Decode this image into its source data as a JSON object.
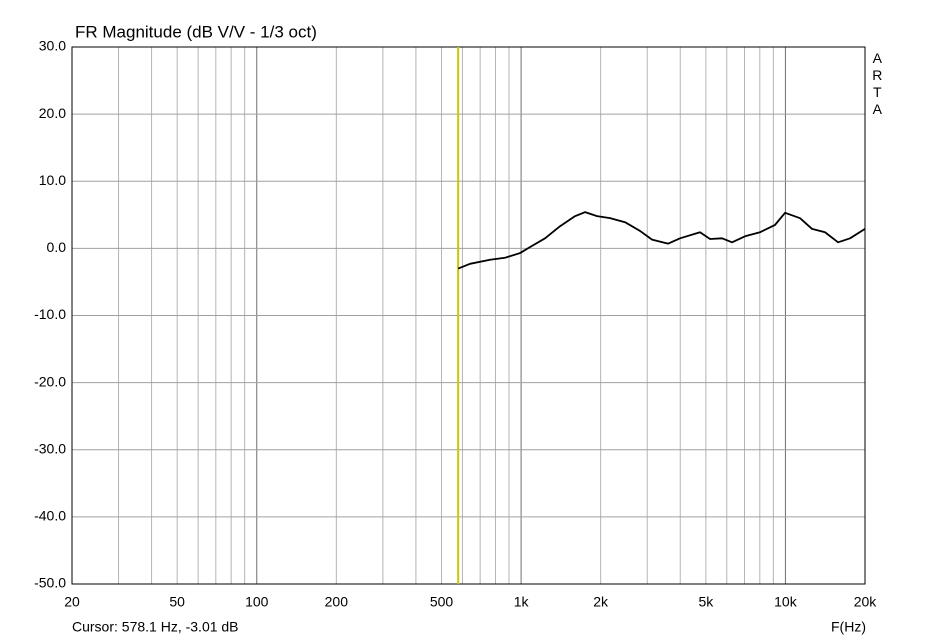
{
  "chart_data": {
    "type": "line",
    "title": "FR Magnitude (dB V/V - 1/3 oct)",
    "x_label": "F(Hz)",
    "watermark": "ARTA",
    "xscale": "log",
    "grid": true,
    "xlim": [
      20,
      20000
    ],
    "ylim": [
      -50,
      30
    ],
    "xticks": [
      20,
      50,
      100,
      200,
      500,
      {
        "value": 1000,
        "label": "1k"
      },
      {
        "value": 2000,
        "label": "2k"
      },
      {
        "value": 5000,
        "label": "5k"
      },
      {
        "value": 10000,
        "label": "10k"
      },
      {
        "value": 20000,
        "label": "20k"
      }
    ],
    "yticks": [
      {
        "value": 30,
        "label": "30.0"
      },
      {
        "value": 20,
        "label": "20.0"
      },
      {
        "value": 10,
        "label": "10.0"
      },
      {
        "value": 0,
        "label": "0.0"
      },
      {
        "value": -10,
        "label": "-10.0"
      },
      {
        "value": -20,
        "label": "-20.0"
      },
      {
        "value": -30,
        "label": "-30.0"
      },
      {
        "value": -40,
        "label": "-40.0"
      },
      {
        "value": -50,
        "label": "-50.0"
      }
    ],
    "cursor": {
      "label": "Cursor: 578.1 Hz, -3.01 dB",
      "x": 578.1,
      "y": -3.01,
      "color": "#c8c800"
    },
    "x": [
      578.1,
      641,
      763,
      869,
      991,
      1082,
      1232,
      1404,
      1600,
      1746,
      1938,
      2170,
      2473,
      2818,
      3128,
      3596,
      3994,
      4751,
      5185,
      5757,
      6281,
      7036,
      8012,
      9135,
      9970,
      11360,
      12610,
      14120,
      15820,
      17560,
      20000
    ],
    "series": [
      {
        "color": "#000000",
        "values": [
          -3.01,
          -2.3,
          -1.7,
          -1.4,
          -0.7,
          0.2,
          1.5,
          3.3,
          4.8,
          5.4,
          4.8,
          4.5,
          3.9,
          2.6,
          1.3,
          0.7,
          1.5,
          2.4,
          1.4,
          1.5,
          0.9,
          1.8,
          2.4,
          3.5,
          5.3,
          4.5,
          2.9,
          2.4,
          0.9,
          1.5,
          2.9
        ]
      }
    ]
  }
}
